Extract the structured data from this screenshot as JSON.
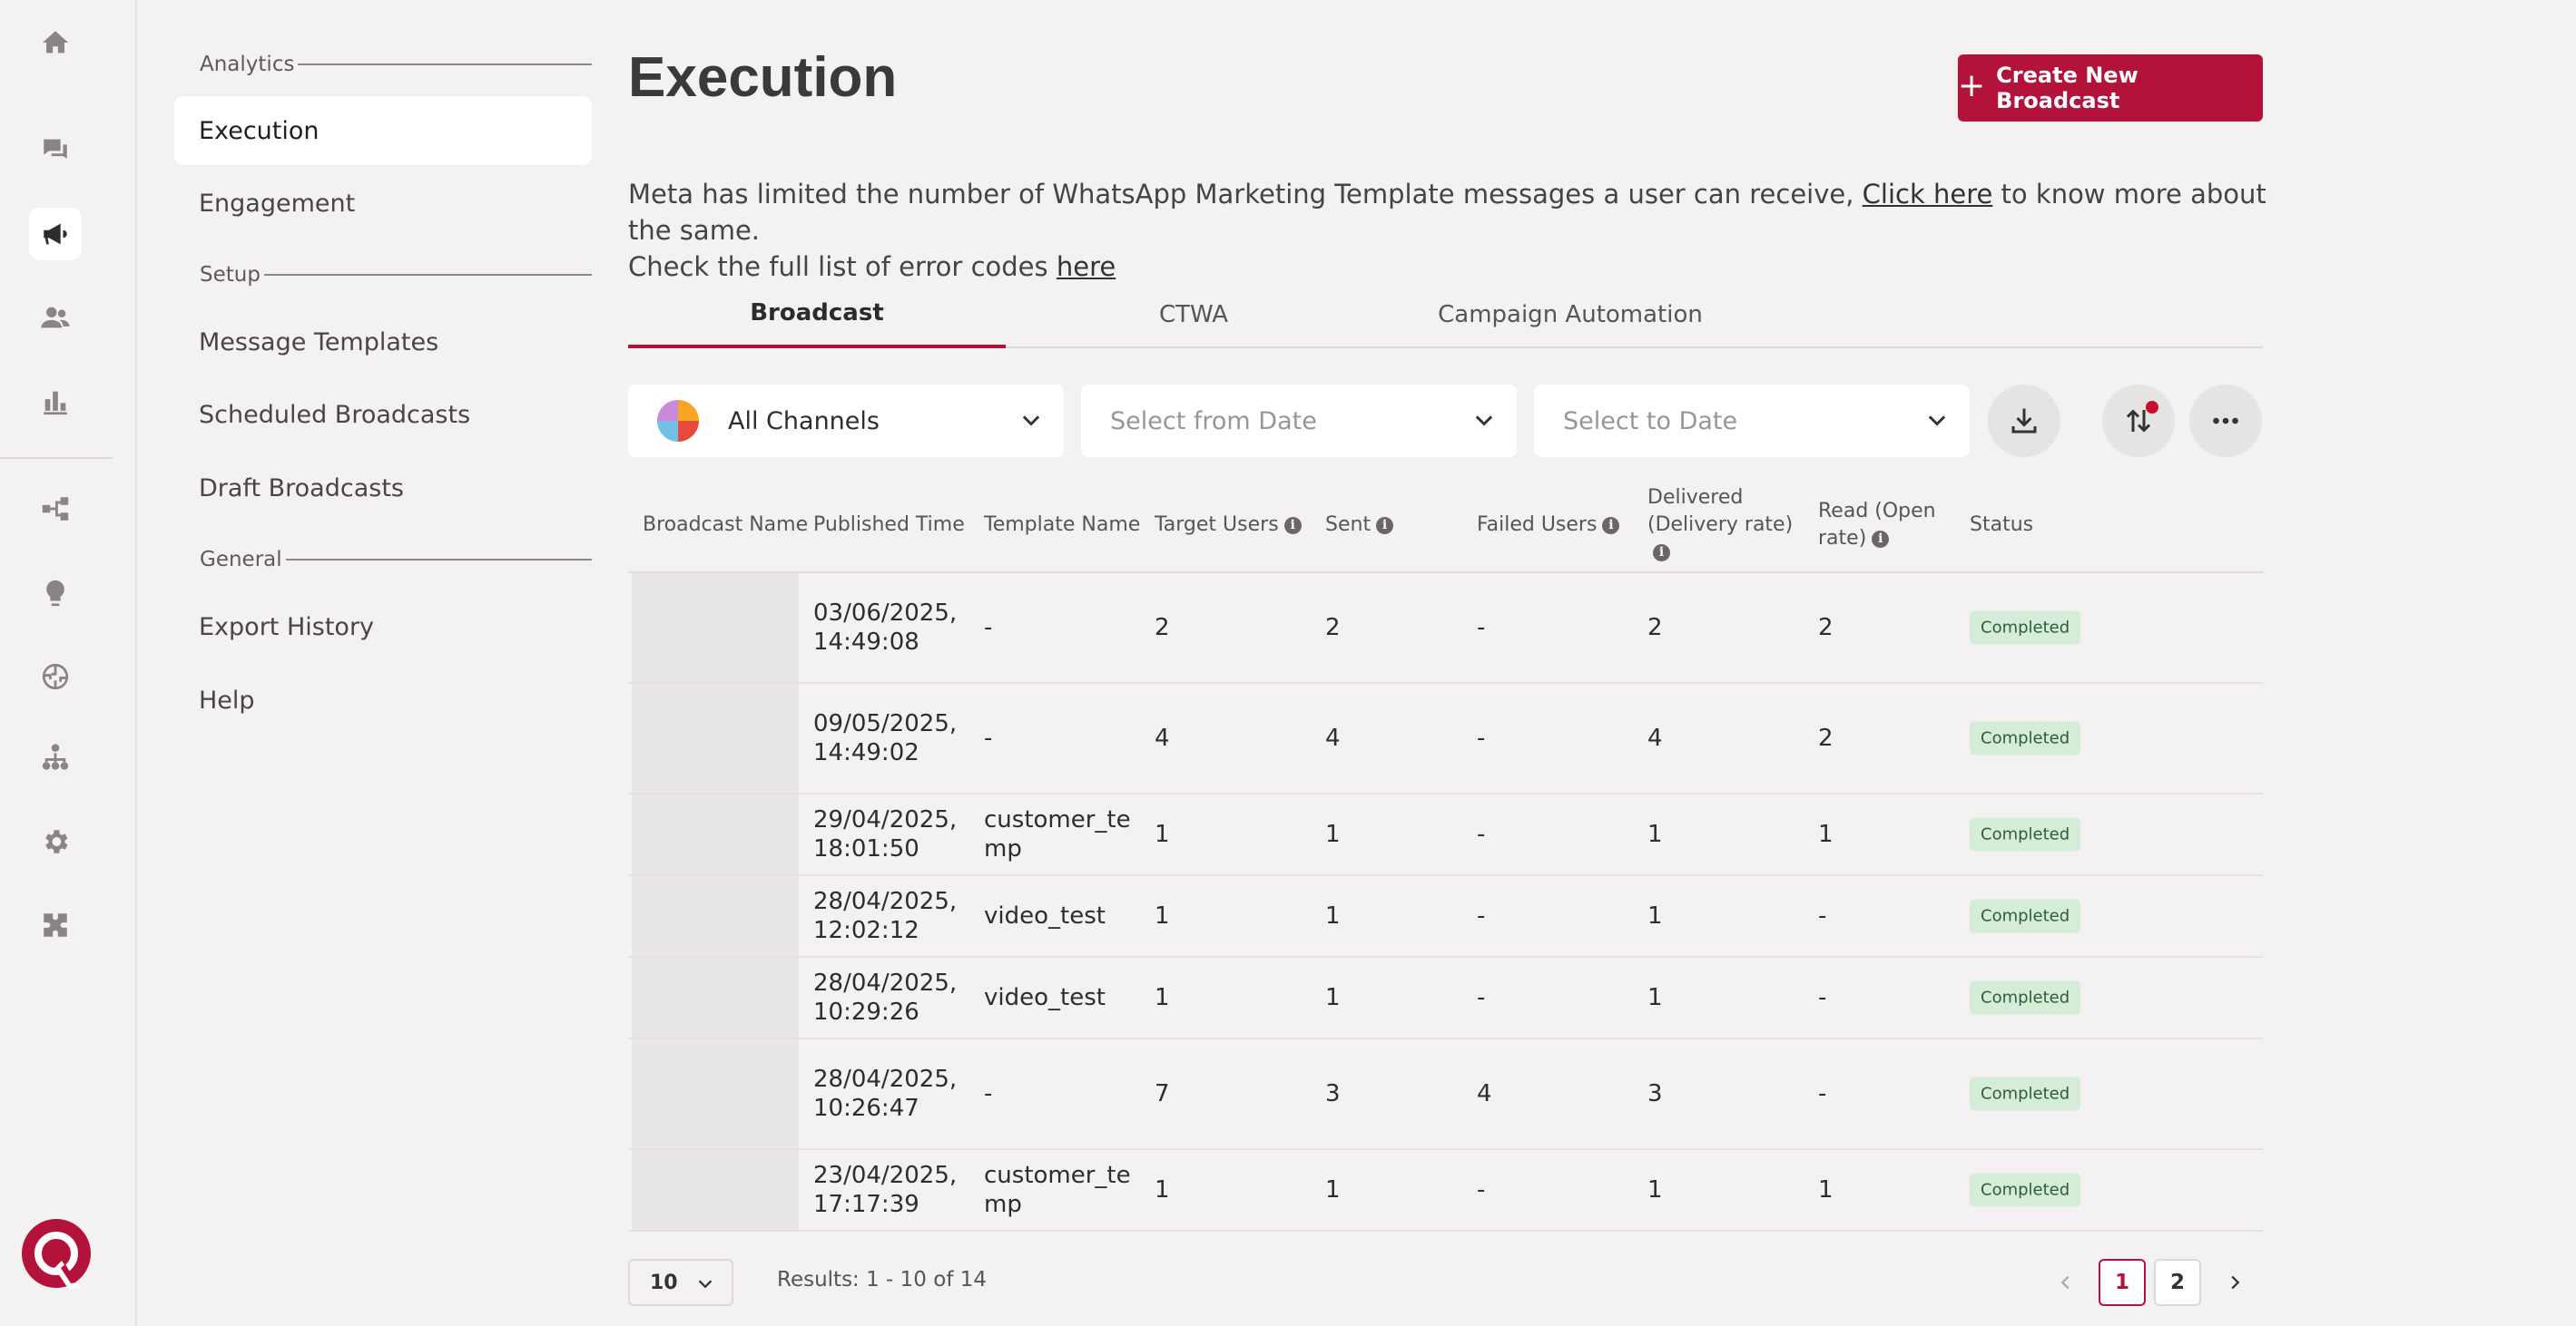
{
  "rail": {
    "icons": [
      "home-icon",
      "chat-icon",
      "megaphone-icon",
      "users-icon",
      "bar-chart-icon",
      "flow-icon",
      "bulb-icon",
      "brain-icon",
      "org-chart-icon",
      "gear-icon",
      "puzzle-icon"
    ],
    "active": "megaphone-icon"
  },
  "subnav": {
    "sections": [
      {
        "label": "Analytics"
      },
      {
        "label": "Setup"
      },
      {
        "label": "General"
      }
    ],
    "items": [
      {
        "label": "Execution",
        "active": true
      },
      {
        "label": "Engagement"
      },
      {
        "label": "Message Templates"
      },
      {
        "label": "Scheduled Broadcasts"
      },
      {
        "label": "Draft Broadcasts"
      },
      {
        "label": "Export History"
      },
      {
        "label": "Help"
      }
    ]
  },
  "page": {
    "title": "Execution",
    "create_button": "Create New Broadcast",
    "notice_pre": "Meta has limited the number of WhatsApp Marketing Template messages a user can receive, ",
    "notice_link": "Click here",
    "notice_post": " to know more about the same.",
    "notice_line2_pre": "Check the full list of error codes ",
    "notice_line2_link": "here"
  },
  "tabs": [
    {
      "label": "Broadcast",
      "active": true
    },
    {
      "label": "CTWA"
    },
    {
      "label": "Campaign Automation"
    }
  ],
  "filters": {
    "channel": "All Channels",
    "from_date_placeholder": "Select from Date",
    "to_date_placeholder": "Select to Date"
  },
  "table": {
    "headers": {
      "broadcast_name": "Broadcast Name",
      "published_time": "Published Time",
      "template_name": "Template Name",
      "target_users": "Target Users",
      "sent": "Sent",
      "failed_users": "Failed Users",
      "delivered": "Delivered (Delivery rate)",
      "read": "Read (Open rate)",
      "status": "Status"
    },
    "rows": [
      {
        "time1": "03/06/2025,",
        "time2": "14:49:08",
        "tpl1": "-",
        "tpl2": "",
        "target": "2",
        "sent": "2",
        "failed": "-",
        "delivered": "2",
        "read": "2",
        "status": "Completed"
      },
      {
        "time1": "09/05/2025,",
        "time2": "14:49:02",
        "tpl1": "-",
        "tpl2": "",
        "target": "4",
        "sent": "4",
        "failed": "-",
        "delivered": "4",
        "read": "2",
        "status": "Completed"
      },
      {
        "time1": "29/04/2025,",
        "time2": "18:01:50",
        "tpl1": "customer_te",
        "tpl2": "mp",
        "target": "1",
        "sent": "1",
        "failed": "-",
        "delivered": "1",
        "read": "1",
        "status": "Completed"
      },
      {
        "time1": "28/04/2025,",
        "time2": "12:02:12",
        "tpl1": "video_test",
        "tpl2": "",
        "target": "1",
        "sent": "1",
        "failed": "-",
        "delivered": "1",
        "read": "-",
        "status": "Completed"
      },
      {
        "time1": "28/04/2025,",
        "time2": "10:29:26",
        "tpl1": "video_test",
        "tpl2": "",
        "target": "1",
        "sent": "1",
        "failed": "-",
        "delivered": "1",
        "read": "-",
        "status": "Completed"
      },
      {
        "time1": "28/04/2025,",
        "time2": "10:26:47",
        "tpl1": "-",
        "tpl2": "",
        "target": "7",
        "sent": "3",
        "failed": "4",
        "delivered": "3",
        "read": "-",
        "status": "Completed"
      },
      {
        "time1": "23/04/2025,",
        "time2": "17:17:39",
        "tpl1": "customer_te",
        "tpl2": "mp",
        "target": "1",
        "sent": "1",
        "failed": "-",
        "delivered": "1",
        "read": "1",
        "status": "Completed"
      }
    ]
  },
  "footer": {
    "page_size": "10",
    "results": "Results: 1 - 10 of 14",
    "pages": [
      "1",
      "2"
    ],
    "current_page": "1"
  },
  "colors": {
    "accent": "#b3123b",
    "background": "#f3f1f1",
    "badge_bg": "#d4ecd8"
  }
}
